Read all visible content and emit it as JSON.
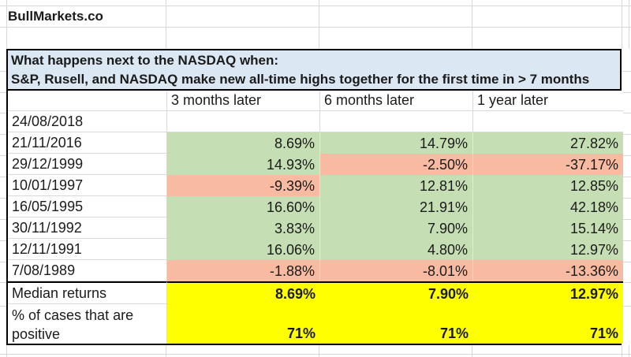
{
  "brand": "BullMarkets.co",
  "title": {
    "line1": "What happens next to the NASDAQ when:",
    "line2": "S&P, Rusell, and NASDAQ make new all-time highs together for the first time in > 7 months"
  },
  "table": {
    "column_headers": [
      "",
      "3 months later",
      "6 months later",
      "1 year later"
    ],
    "rows": [
      {
        "label": "24/08/2018",
        "values": [
          "",
          "",
          ""
        ],
        "colors": [
          "none",
          "none",
          "none"
        ]
      },
      {
        "label": "21/11/2016",
        "values": [
          "8.69%",
          "14.79%",
          "27.82%"
        ],
        "colors": [
          "green",
          "green",
          "green"
        ]
      },
      {
        "label": "29/12/1999",
        "values": [
          "14.93%",
          "-2.50%",
          "-37.17%"
        ],
        "colors": [
          "green",
          "red",
          "red"
        ]
      },
      {
        "label": "10/01/1997",
        "values": [
          "-9.39%",
          "12.81%",
          "12.85%"
        ],
        "colors": [
          "red",
          "green",
          "green"
        ]
      },
      {
        "label": "16/05/1995",
        "values": [
          "16.60%",
          "21.91%",
          "42.18%"
        ],
        "colors": [
          "green",
          "green",
          "green"
        ]
      },
      {
        "label": "30/11/1992",
        "values": [
          "3.83%",
          "7.90%",
          "15.14%"
        ],
        "colors": [
          "green",
          "green",
          "green"
        ]
      },
      {
        "label": "12/11/1991",
        "values": [
          "16.06%",
          "4.80%",
          "12.97%"
        ],
        "colors": [
          "green",
          "green",
          "green"
        ]
      },
      {
        "label": "7/08/1989",
        "values": [
          "-1.88%",
          "-8.01%",
          "-13.36%"
        ],
        "colors": [
          "red",
          "red",
          "red"
        ]
      }
    ],
    "summary_rows": [
      {
        "label": "Median returns",
        "values": [
          "8.69%",
          "7.90%",
          "12.97%"
        ]
      },
      {
        "label": "% of cases that are positive",
        "values": [
          "71%",
          "71%",
          "71%"
        ]
      }
    ]
  },
  "colors": {
    "positive_green": "#c6deb4",
    "negative_red": "#f8bba1",
    "summary_yellow": "#ffff00",
    "title_blue": "#dbe7f2",
    "gridline": "#d8d8d8",
    "border": "#000000"
  }
}
